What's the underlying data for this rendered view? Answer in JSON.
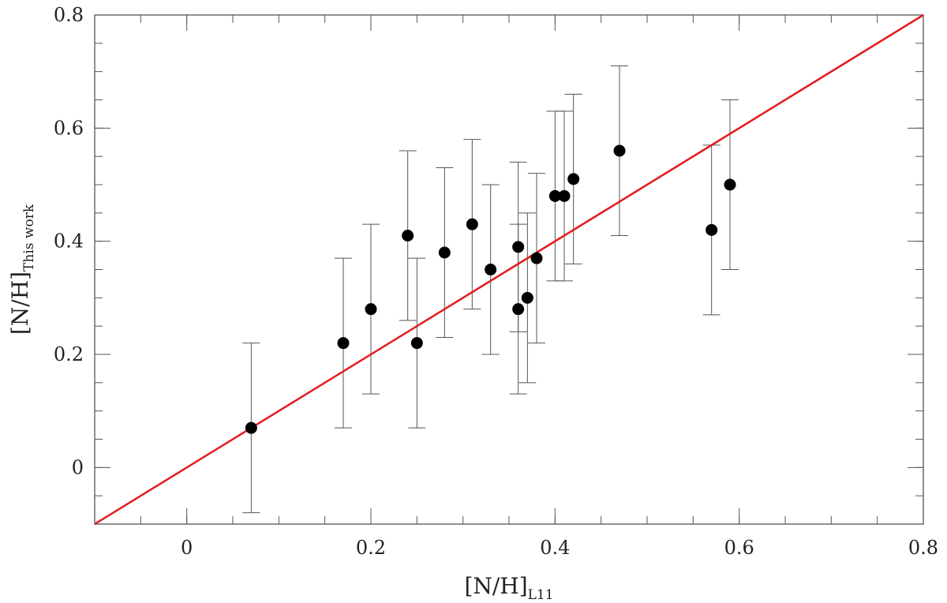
{
  "chart_data": {
    "type": "scatter",
    "xlabel": {
      "main": "[N/H]",
      "sub": "L11"
    },
    "ylabel": {
      "main": "[N/H]",
      "sub": "This work"
    },
    "xlim": [
      -0.1,
      0.8
    ],
    "ylim": [
      -0.1,
      0.8
    ],
    "x_ticks": [
      0,
      0.2,
      0.4,
      0.6,
      0.8
    ],
    "x_tick_labels": [
      "0",
      "0.2",
      "0.4",
      "0.6",
      "0.8"
    ],
    "y_ticks": [
      0,
      0.2,
      0.4,
      0.6,
      0.8
    ],
    "y_tick_labels": [
      "0",
      "0.2",
      "0.4",
      "0.6",
      "0.8"
    ],
    "minor_tick_step": 0.05,
    "grid": false,
    "legend": "none",
    "reference_line": {
      "from": [
        -0.1,
        -0.1
      ],
      "to": [
        0.8,
        0.8
      ],
      "color": "#e41a1c"
    },
    "marker_color": "#000000",
    "errorbar_color": "#555555",
    "points": [
      {
        "x": 0.07,
        "y": 0.07,
        "yerr": 0.15
      },
      {
        "x": 0.17,
        "y": 0.22,
        "yerr": 0.15
      },
      {
        "x": 0.2,
        "y": 0.28,
        "yerr": 0.15
      },
      {
        "x": 0.24,
        "y": 0.41,
        "yerr": 0.15
      },
      {
        "x": 0.25,
        "y": 0.22,
        "yerr": 0.15
      },
      {
        "x": 0.28,
        "y": 0.38,
        "yerr": 0.15
      },
      {
        "x": 0.31,
        "y": 0.43,
        "yerr": 0.15
      },
      {
        "x": 0.33,
        "y": 0.35,
        "yerr": 0.15
      },
      {
        "x": 0.36,
        "y": 0.39,
        "yerr": 0.15
      },
      {
        "x": 0.36,
        "y": 0.28,
        "yerr": 0.15
      },
      {
        "x": 0.37,
        "y": 0.3,
        "yerr": 0.15
      },
      {
        "x": 0.38,
        "y": 0.37,
        "yerr": 0.15
      },
      {
        "x": 0.4,
        "y": 0.48,
        "yerr": 0.15
      },
      {
        "x": 0.41,
        "y": 0.48,
        "yerr": 0.15
      },
      {
        "x": 0.42,
        "y": 0.51,
        "yerr": 0.15
      },
      {
        "x": 0.47,
        "y": 0.56,
        "yerr": 0.15
      },
      {
        "x": 0.57,
        "y": 0.42,
        "yerr": 0.15
      },
      {
        "x": 0.59,
        "y": 0.5,
        "yerr": 0.15
      }
    ]
  }
}
